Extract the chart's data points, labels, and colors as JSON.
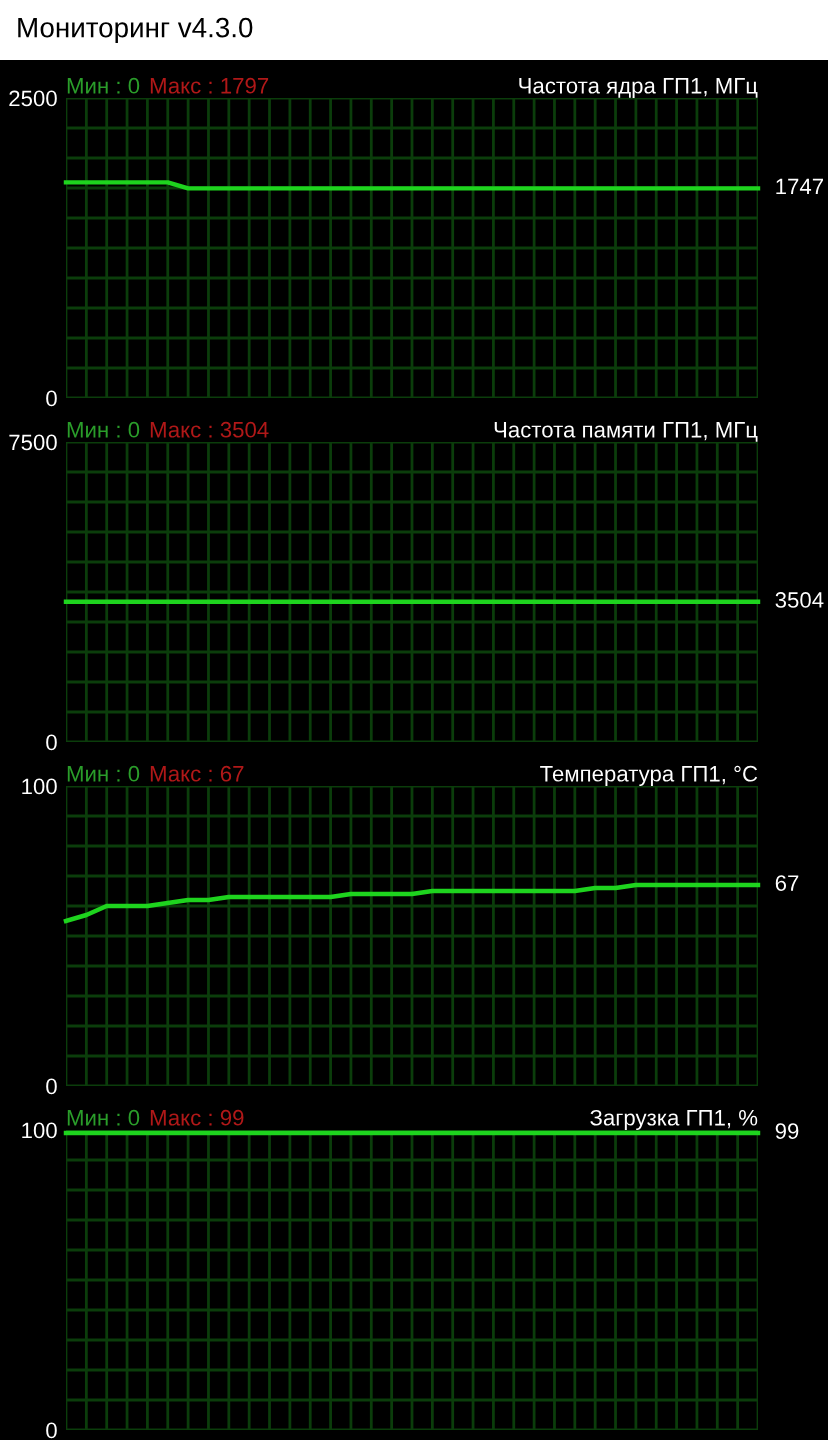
{
  "chart_data": [
    {
      "type": "other",
      "title": "Мониторинг v4.3.0"
    },
    {
      "type": "line",
      "title": "Частота ядра ГП1, МГц",
      "annotations": [
        "Мин : 0",
        "Макс : 1797"
      ],
      "categories": [
        null,
        null,
        null,
        null,
        null,
        null,
        null,
        null,
        null,
        null,
        null,
        null,
        null,
        null,
        null,
        null,
        null,
        null,
        null,
        null,
        null,
        null,
        null,
        null,
        null,
        null,
        null,
        null,
        null,
        null,
        null,
        null,
        null,
        null,
        null
      ],
      "ylim": [
        0,
        2500
      ],
      "yticks": [
        0,
        {
          "value": 250,
          "label": null
        },
        {
          "value": 500,
          "label": null
        },
        {
          "value": 750,
          "label": null
        },
        {
          "value": 1000,
          "label": null
        },
        {
          "value": 1250,
          "label": null
        },
        {
          "value": 1500,
          "label": null
        },
        {
          "value": 1750,
          "label": null
        },
        {
          "value": 2000,
          "label": null
        },
        {
          "value": 2250,
          "label": null
        },
        2500
      ],
      "grid": true,
      "tick_labels": "y",
      "series": [
        {
          "color": "#1ed41e",
          "values": [
            1797,
            1797,
            1797,
            1797,
            1797,
            1797,
            1747,
            1747,
            1747,
            1747,
            1747,
            1747,
            1747,
            1747,
            1747,
            1747,
            1747,
            1747,
            1747,
            1747,
            1747,
            1747,
            1747,
            1747,
            1747,
            1747,
            1747,
            1747,
            1747,
            1747,
            1747,
            1747,
            1747,
            1747,
            1747
          ],
          "value_labels": [
            null,
            null,
            null,
            null,
            null,
            null,
            null,
            null,
            null,
            null,
            null,
            null,
            null,
            null,
            null,
            null,
            null,
            null,
            null,
            null,
            null,
            null,
            null,
            null,
            null,
            null,
            null,
            null,
            null,
            null,
            null,
            null,
            null,
            null,
            "1747"
          ]
        }
      ]
    },
    {
      "type": "line",
      "title": "Частота памяти ГП1, МГц",
      "annotations": [
        "Мин : 0",
        "Макс : 3504"
      ],
      "categories": [
        null,
        null,
        null,
        null,
        null,
        null,
        null,
        null,
        null,
        null,
        null,
        null,
        null,
        null,
        null,
        null,
        null,
        null,
        null,
        null,
        null,
        null,
        null,
        null,
        null,
        null,
        null,
        null,
        null,
        null,
        null,
        null,
        null,
        null,
        null
      ],
      "ylim": [
        0,
        7500
      ],
      "yticks": [
        0,
        {
          "value": 750,
          "label": null
        },
        {
          "value": 1500,
          "label": null
        },
        {
          "value": 2250,
          "label": null
        },
        {
          "value": 3000,
          "label": null
        },
        {
          "value": 3750,
          "label": null
        },
        {
          "value": 4500,
          "label": null
        },
        {
          "value": 5250,
          "label": null
        },
        {
          "value": 6000,
          "label": null
        },
        {
          "value": 6750,
          "label": null
        },
        7500
      ],
      "grid": true,
      "tick_labels": "y",
      "series": [
        {
          "color": "#1ed41e",
          "values": [
            3504,
            3504,
            3504,
            3504,
            3504,
            3504,
            3504,
            3504,
            3504,
            3504,
            3504,
            3504,
            3504,
            3504,
            3504,
            3504,
            3504,
            3504,
            3504,
            3504,
            3504,
            3504,
            3504,
            3504,
            3504,
            3504,
            3504,
            3504,
            3504,
            3504,
            3504,
            3504,
            3504,
            3504,
            3504
          ],
          "value_labels": [
            null,
            null,
            null,
            null,
            null,
            null,
            null,
            null,
            null,
            null,
            null,
            null,
            null,
            null,
            null,
            null,
            null,
            null,
            null,
            null,
            null,
            null,
            null,
            null,
            null,
            null,
            null,
            null,
            null,
            null,
            null,
            null,
            null,
            null,
            "3504"
          ]
        }
      ]
    },
    {
      "type": "line",
      "title": "Температура ГП1, °C",
      "annotations": [
        "Мин : 0",
        "Макс : 67"
      ],
      "categories": [
        null,
        null,
        null,
        null,
        null,
        null,
        null,
        null,
        null,
        null,
        null,
        null,
        null,
        null,
        null,
        null,
        null,
        null,
        null,
        null,
        null,
        null,
        null,
        null,
        null,
        null,
        null,
        null,
        null,
        null,
        null,
        null,
        null,
        null,
        null
      ],
      "ylim": [
        0,
        100
      ],
      "yticks": [
        0,
        {
          "value": 10,
          "label": null
        },
        {
          "value": 20,
          "label": null
        },
        {
          "value": 30,
          "label": null
        },
        {
          "value": 40,
          "label": null
        },
        {
          "value": 50,
          "label": null
        },
        {
          "value": 60,
          "label": null
        },
        {
          "value": 70,
          "label": null
        },
        {
          "value": 80,
          "label": null
        },
        {
          "value": 90,
          "label": null
        },
        100
      ],
      "grid": true,
      "tick_labels": "y",
      "series": [
        {
          "color": "#1ed41e",
          "values": [
            55,
            57,
            60,
            60,
            60,
            61,
            62,
            62,
            63,
            63,
            63,
            63,
            63,
            63,
            64,
            64,
            64,
            64,
            65,
            65,
            65,
            65,
            65,
            65,
            65,
            65,
            66,
            66,
            67,
            67,
            67,
            67,
            67,
            67,
            67
          ],
          "value_labels": [
            null,
            null,
            null,
            null,
            null,
            null,
            null,
            null,
            null,
            null,
            null,
            null,
            null,
            null,
            null,
            null,
            null,
            null,
            null,
            null,
            null,
            null,
            null,
            null,
            null,
            null,
            null,
            null,
            null,
            null,
            null,
            null,
            null,
            null,
            "67"
          ]
        }
      ]
    },
    {
      "type": "line",
      "title": "Загрузка ГП1, %",
      "annotations": [
        "Мин : 0",
        "Макс : 99"
      ],
      "categories": [
        null,
        null,
        null,
        null,
        null,
        null,
        null,
        null,
        null,
        null,
        null,
        null,
        null,
        null,
        null,
        null,
        null,
        null,
        null,
        null,
        null,
        null,
        null,
        null,
        null,
        null,
        null,
        null,
        null,
        null,
        null,
        null,
        null,
        null,
        null
      ],
      "ylim": [
        0,
        100
      ],
      "yticks": [
        0,
        {
          "value": 10,
          "label": null
        },
        {
          "value": 20,
          "label": null
        },
        {
          "value": 30,
          "label": null
        },
        {
          "value": 40,
          "label": null
        },
        {
          "value": 50,
          "label": null
        },
        {
          "value": 60,
          "label": null
        },
        {
          "value": 70,
          "label": null
        },
        {
          "value": 80,
          "label": null
        },
        {
          "value": 90,
          "label": null
        },
        100
      ],
      "grid": true,
      "tick_labels": "y",
      "series": [
        {
          "color": "#1ed41e",
          "values": [
            99,
            99,
            99,
            99,
            99,
            99,
            99,
            99,
            99,
            99,
            99,
            99,
            99,
            99,
            99,
            99,
            99,
            99,
            99,
            99,
            99,
            99,
            99,
            99,
            99,
            99,
            99,
            99,
            99,
            99,
            99,
            99,
            99,
            99,
            99
          ],
          "value_labels": [
            null,
            null,
            null,
            null,
            null,
            null,
            null,
            null,
            null,
            null,
            null,
            null,
            null,
            null,
            null,
            null,
            null,
            null,
            null,
            null,
            null,
            null,
            null,
            null,
            null,
            null,
            null,
            null,
            null,
            null,
            null,
            null,
            null,
            null,
            "99"
          ]
        }
      ]
    }
  ]
}
